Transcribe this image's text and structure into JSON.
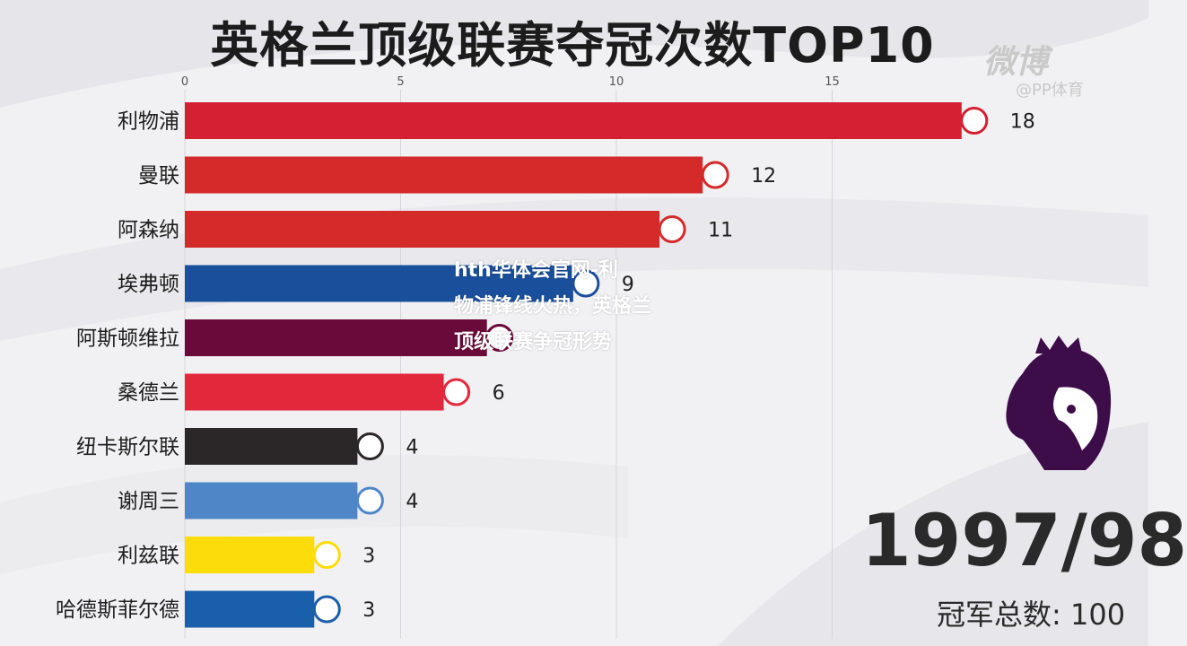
{
  "title": "英格兰顶级联赛夺冠次数TOP10",
  "watermark": {
    "brand": "微博",
    "handle": "@PP体育"
  },
  "overlay_text": [
    "hth华体会官网-利",
    "物浦锋线火热，英格兰",
    "顶级联赛争冠形势"
  ],
  "season": "1997/98",
  "total": {
    "label": "冠军总数:",
    "value": "100"
  },
  "chart_data": {
    "type": "bar",
    "orientation": "horizontal",
    "title": "英格兰顶级联赛夺冠次数TOP10",
    "categories": [
      "利物浦",
      "曼联",
      "阿森纳",
      "埃弗顿",
      "阿斯顿维拉",
      "桑德兰",
      "纽卡斯尔联",
      "谢周三",
      "利兹联",
      "哈德斯菲尔德"
    ],
    "values": [
      18,
      12,
      11,
      9,
      7,
      6,
      4,
      4,
      3,
      3
    ],
    "value_labels": [
      "18",
      "12",
      "11",
      "9",
      "",
      "6",
      "4",
      "4",
      "3",
      "3"
    ],
    "colors": [
      "#d42032",
      "#d42a2a",
      "#d42a2a",
      "#1a4f9c",
      "#6a0a3a",
      "#e4283c",
      "#2b2627",
      "#4f86c8",
      "#fcdc0a",
      "#1a5faa"
    ],
    "badges": [
      "liverpool-badge-icon",
      "man-utd-badge-icon",
      "arsenal-badge-icon",
      "everton-badge-icon",
      "aston-villa-badge-icon",
      "sunderland-badge-icon",
      "newcastle-badge-icon",
      "sheffield-wednesday-badge-icon",
      "leeds-badge-icon",
      "huddersfield-badge-icon"
    ],
    "xticks": [
      "0",
      "5",
      "10",
      "15"
    ],
    "xlim": [
      0,
      18
    ],
    "grid": true,
    "xlabel": "",
    "ylabel": ""
  }
}
